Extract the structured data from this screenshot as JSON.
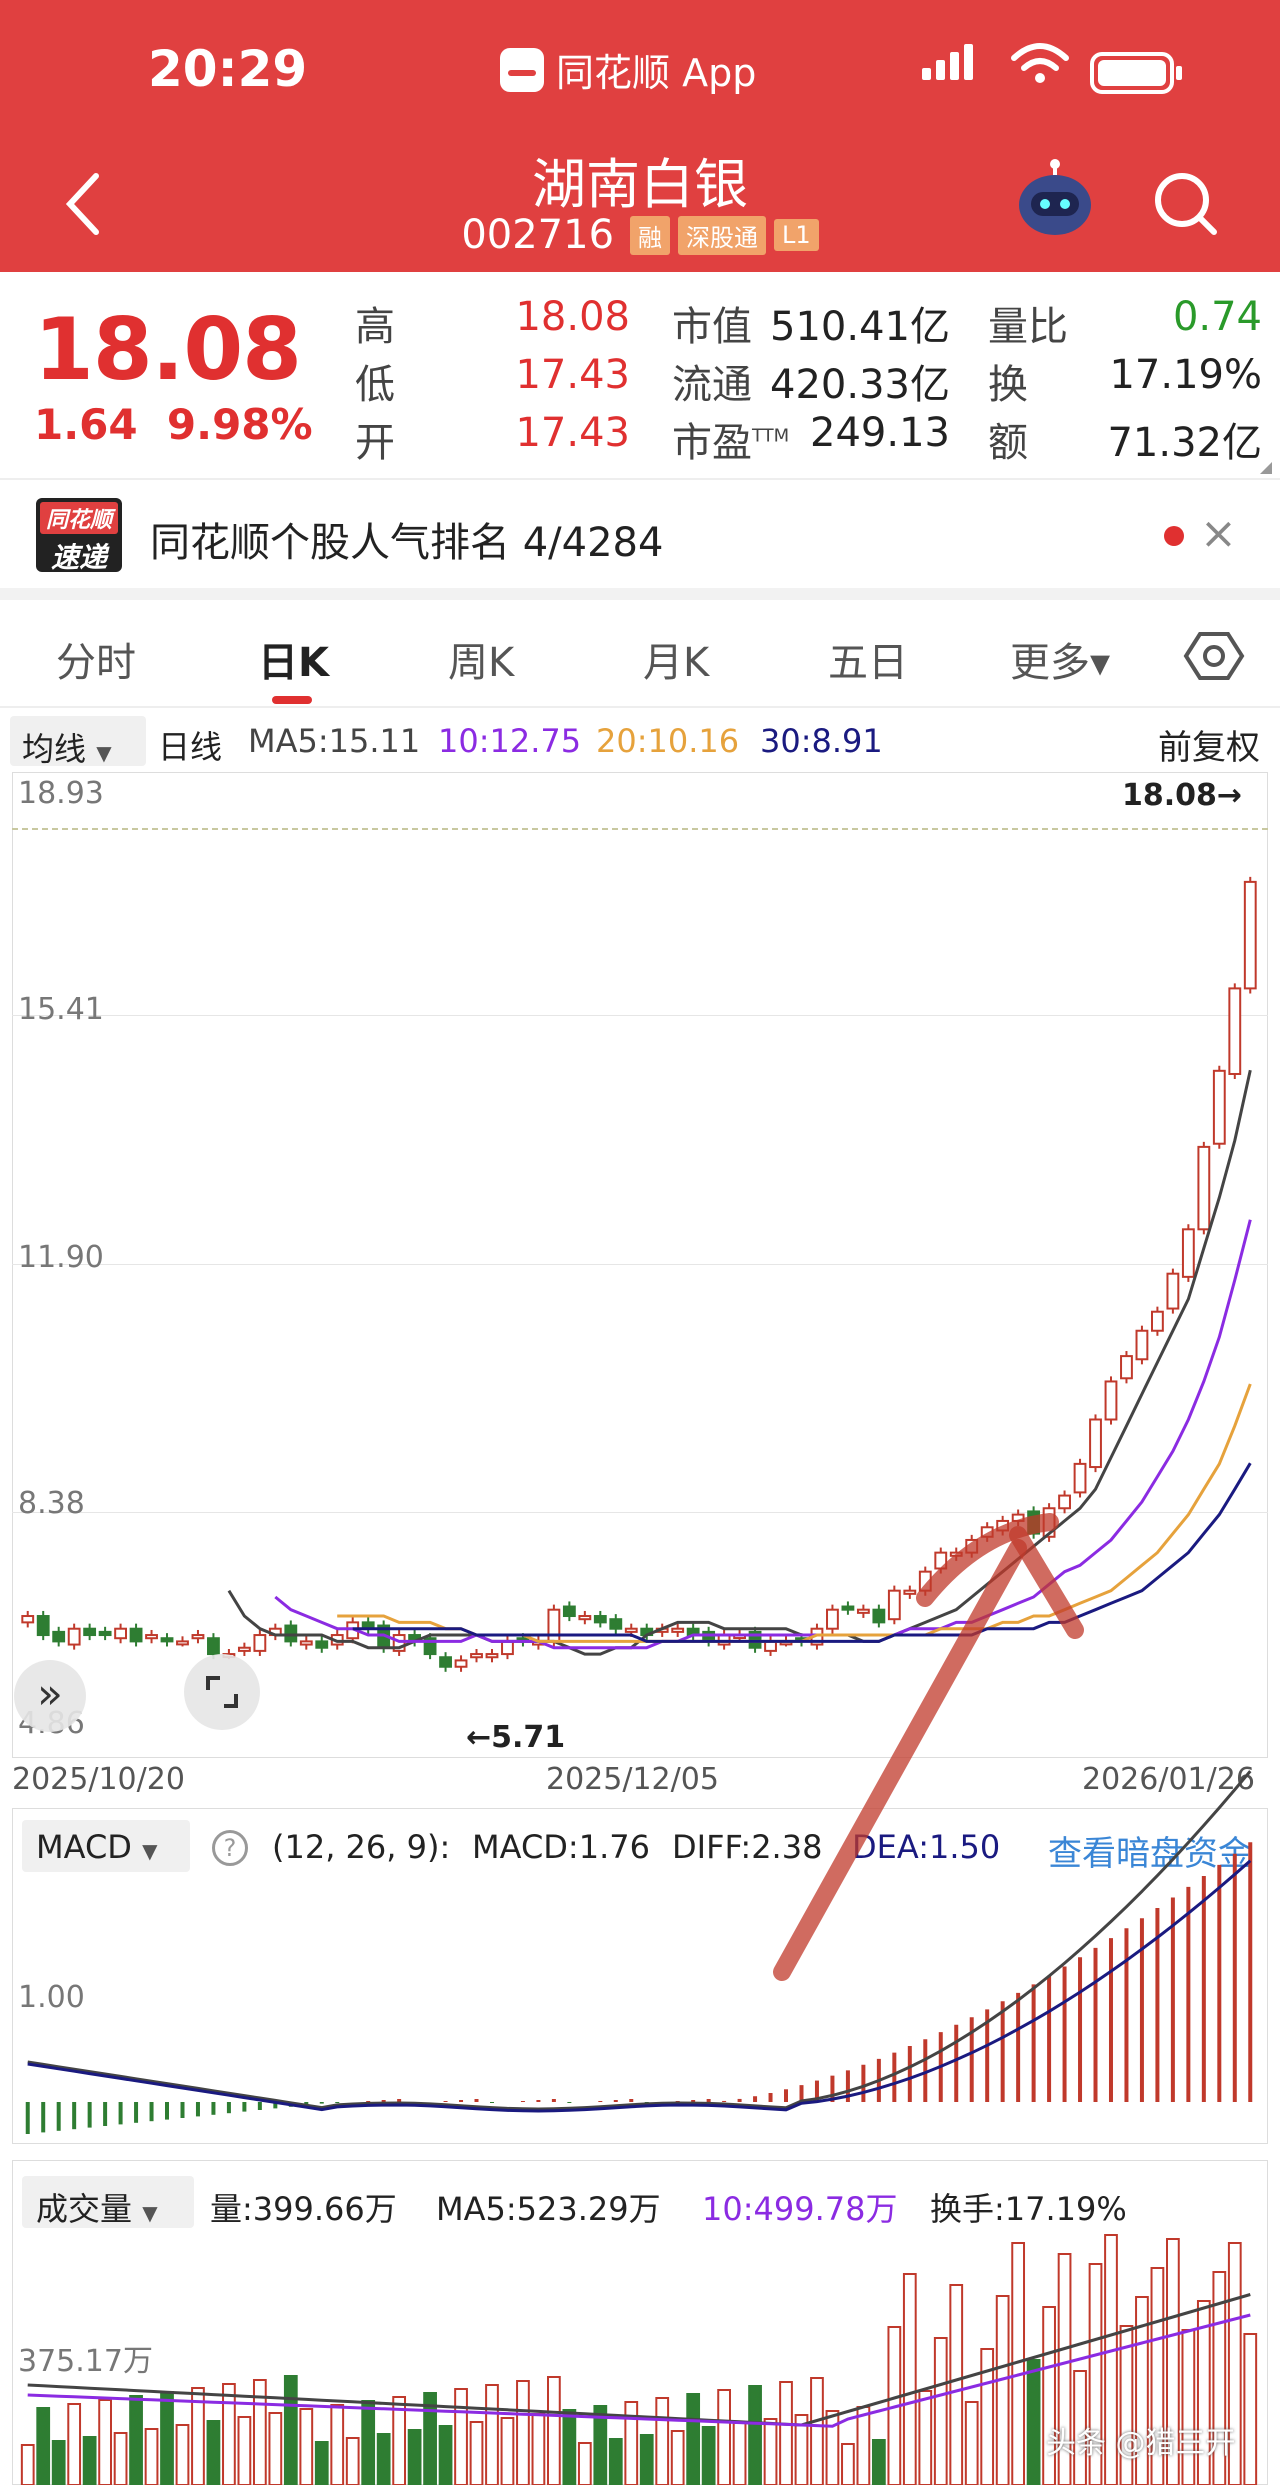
{
  "status_bar": {
    "time": "20:29",
    "app_name": "同花顺 App"
  },
  "header": {
    "title": "湖南白银",
    "code": "002716",
    "tags": [
      "融",
      "深股通",
      "L1"
    ]
  },
  "quote": {
    "price": "18.08",
    "change": "1.64",
    "change_pct": "9.98%",
    "stats": [
      {
        "label": "高",
        "value": "18.08",
        "color": "red"
      },
      {
        "label": "低",
        "value": "17.43",
        "color": "red"
      },
      {
        "label": "开",
        "value": "17.43",
        "color": "red"
      },
      {
        "label": "市值",
        "value": "510.41亿",
        "color": "black"
      },
      {
        "label": "流通",
        "value": "420.33亿",
        "color": "black"
      },
      {
        "label": "市盈",
        "sup": "TTM",
        "value": "249.13",
        "color": "black"
      },
      {
        "label": "量比",
        "value": "0.74",
        "color": "green"
      },
      {
        "label": "换",
        "value": "17.19%",
        "color": "black"
      },
      {
        "label": "额",
        "value": "71.32亿",
        "color": "black"
      }
    ]
  },
  "notice": {
    "badge_top": "同花顺",
    "badge_bottom": "速递",
    "text": "同花顺个股人气排名 4/4284"
  },
  "tabs": [
    "分时",
    "日K",
    "周K",
    "月K",
    "五日",
    "更多▾"
  ],
  "active_tab": "日K",
  "ma_line": {
    "dropdown": "均线",
    "period": "日线",
    "ma5": "MA5:15.11",
    "ma10": "10:12.75",
    "ma20": "20:10.16",
    "ma30": "30:8.91",
    "adjust": "前复权",
    "colors": {
      "ma5": "#444444",
      "ma10": "#8b2be2",
      "ma20": "#e6a23c",
      "ma30": "#1a1a80"
    }
  },
  "kline": {
    "price_labels": [
      "18.93",
      "15.41",
      "11.90",
      "8.38",
      "4.86"
    ],
    "last_marker": "18.08→",
    "low_marker": "←5.71",
    "dates": [
      "2025/10/20",
      "2025/12/05",
      "2026/01/26"
    ],
    "up_color": "#c0392b",
    "down_color": "#2e7d32"
  },
  "chart_data": [
    {
      "type": "candlestick",
      "title": "日K",
      "ylim": [
        4.86,
        18.93
      ],
      "x_labels": [
        "2025/10/20",
        "2025/12/05",
        "2026/01/26"
      ],
      "series": [
        {
          "name": "K",
          "close": [
            6.5,
            6.2,
            6.1,
            6.3,
            6.2,
            6.2,
            6.3,
            6.1,
            6.2,
            6.1,
            6.1,
            6.2,
            5.9,
            5.9,
            6.0,
            6.2,
            6.3,
            6.1,
            6.1,
            6.0,
            6.2,
            6.4,
            6.3,
            6.0,
            6.2,
            6.1,
            5.9,
            5.7,
            5.8,
            5.9,
            5.9,
            6.1,
            6.1,
            6.1,
            6.6,
            6.5,
            6.5,
            6.4,
            6.3,
            6.3,
            6.2,
            6.3,
            6.3,
            6.2,
            6.1,
            6.2,
            6.2,
            6.0,
            6.1,
            6.1,
            6.1,
            6.3,
            6.6,
            6.6,
            6.6,
            6.4,
            6.9,
            6.9,
            7.2,
            7.5,
            7.5,
            7.7,
            7.9,
            8.0,
            8.1,
            7.8,
            8.2,
            8.4,
            8.9,
            9.6,
            10.2,
            10.6,
            11.0,
            11.3,
            11.9,
            12.6,
            13.9,
            15.1,
            16.4,
            18.08
          ]
        },
        {
          "name": "MA5",
          "values": [
            6.9,
            6.5,
            6.3,
            6.2,
            6.2,
            6.2,
            6.2,
            6.1,
            6.1,
            6.0,
            6.0,
            6.0,
            6.1,
            6.2,
            6.2,
            6.2,
            6.2,
            6.1,
            6.1,
            6.1,
            6.1,
            6.1,
            6.0,
            5.9,
            5.9,
            6.0,
            6.0,
            6.2,
            6.3,
            6.4,
            6.4,
            6.4,
            6.3,
            6.3,
            6.3,
            6.3,
            6.3,
            6.2,
            6.2,
            6.2,
            6.2,
            6.1,
            6.1,
            6.2,
            6.3,
            6.4,
            6.5,
            6.6,
            6.8,
            7.0,
            7.2,
            7.4,
            7.6,
            7.8,
            8.0,
            8.2,
            8.5,
            9.0,
            9.5,
            10.0,
            10.5,
            11.0,
            11.5,
            12.3,
            13.1,
            14.0,
            15.11
          ]
        },
        {
          "name": "10",
          "values": [
            6.8,
            6.6,
            6.5,
            6.4,
            6.3,
            6.3,
            6.2,
            6.2,
            6.1,
            6.1,
            6.1,
            6.1,
            6.1,
            6.2,
            6.1,
            6.1,
            6.1,
            6.1,
            6.0,
            6.0,
            6.0,
            6.0,
            6.0,
            6.0,
            6.0,
            6.1,
            6.1,
            6.2,
            6.2,
            6.2,
            6.2,
            6.2,
            6.2,
            6.2,
            6.2,
            6.2,
            6.2,
            6.2,
            6.2,
            6.2,
            6.2,
            6.3,
            6.3,
            6.3,
            6.4,
            6.4,
            6.5,
            6.6,
            6.7,
            6.8,
            7.0,
            7.2,
            7.3,
            7.5,
            7.7,
            8.0,
            8.3,
            8.7,
            9.1,
            9.6,
            10.2,
            10.9,
            11.8,
            12.75
          ]
        },
        {
          "name": "20",
          "values": [
            6.5,
            6.5,
            6.5,
            6.5,
            6.4,
            6.4,
            6.4,
            6.3,
            6.3,
            6.2,
            6.2,
            6.2,
            6.2,
            6.1,
            6.1,
            6.1,
            6.1,
            6.1,
            6.1,
            6.1,
            6.1,
            6.1,
            6.1,
            6.1,
            6.1,
            6.1,
            6.1,
            6.1,
            6.1,
            6.1,
            6.1,
            6.2,
            6.2,
            6.2,
            6.2,
            6.2,
            6.2,
            6.2,
            6.2,
            6.3,
            6.3,
            6.3,
            6.3,
            6.4,
            6.4,
            6.5,
            6.5,
            6.6,
            6.7,
            6.8,
            6.9,
            7.1,
            7.3,
            7.5,
            7.8,
            8.1,
            8.5,
            8.9,
            9.5,
            10.16
          ]
        },
        {
          "name": "30",
          "values": [
            6.3,
            6.3,
            6.3,
            6.3,
            6.3,
            6.3,
            6.3,
            6.3,
            6.2,
            6.2,
            6.2,
            6.2,
            6.2,
            6.2,
            6.2,
            6.2,
            6.2,
            6.2,
            6.2,
            6.1,
            6.1,
            6.1,
            6.1,
            6.1,
            6.1,
            6.1,
            6.1,
            6.1,
            6.1,
            6.1,
            6.1,
            6.1,
            6.1,
            6.1,
            6.1,
            6.2,
            6.2,
            6.2,
            6.2,
            6.2,
            6.2,
            6.3,
            6.3,
            6.3,
            6.3,
            6.4,
            6.4,
            6.5,
            6.6,
            6.7,
            6.8,
            6.9,
            7.1,
            7.3,
            7.5,
            7.8,
            8.1,
            8.5,
            8.91
          ]
        }
      ]
    },
    {
      "type": "bar",
      "title": "MACD",
      "params": "(12, 26, 9):",
      "macd": "MACD:1.76",
      "diff": "DIFF:2.38",
      "dea": "DEA:1.50",
      "y_label": "1.00",
      "link": "查看暗盘资金"
    },
    {
      "type": "bar",
      "title": "成交量",
      "vol": "量:399.66万",
      "ma5": "MA5:523.29万",
      "ma10": "10:499.78万",
      "turnover": "换手:17.19%",
      "y_label": "375.17万"
    }
  ],
  "watermark": "头条 @猎三开"
}
